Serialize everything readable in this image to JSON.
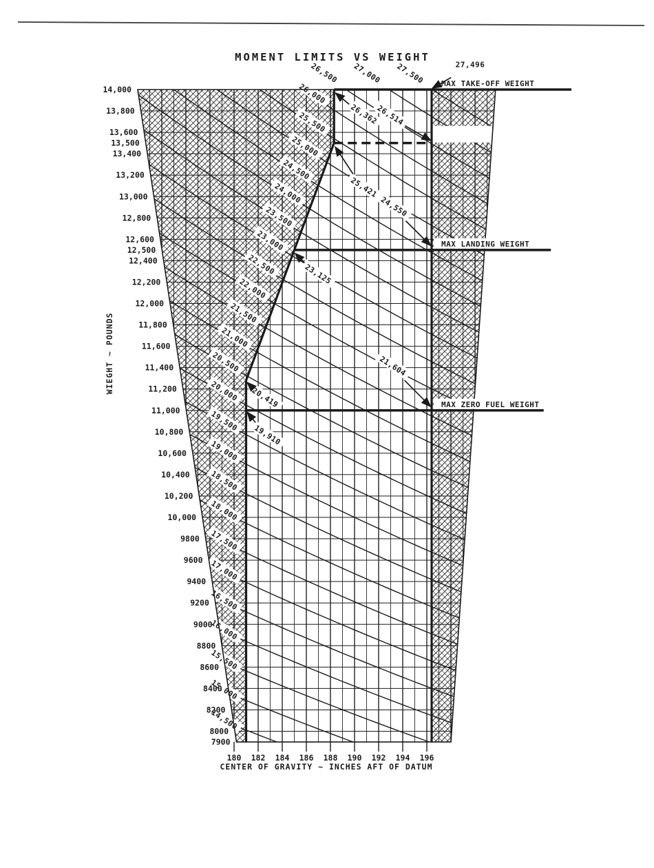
{
  "chart_data": {
    "type": "line",
    "subtype": "cg-envelope",
    "title": "MOMENT LIMITS VS WEIGHT",
    "xlabel": "CENTER OF GRAVITY ~ INCHES AFT OF DATUM",
    "ylabel": "WIEGHT ~ POUNDS",
    "x_ticks": [
      "180",
      "182",
      "184",
      "186",
      "188",
      "190",
      "192",
      "194",
      "196"
    ],
    "y_ticks": [
      "14,000",
      "13,800",
      "13,600",
      "13,500",
      "13,400",
      "13,200",
      "13,000",
      "12,800",
      "12,600",
      "12,500",
      "12,400",
      "12,200",
      "12,000",
      "11,800",
      "11,600",
      "11,400",
      "11,200",
      "11,000",
      "10,800",
      "10,600",
      "10,400",
      "10,200",
      "10,000",
      "9800",
      "9600",
      "9400",
      "9200",
      "9000",
      "8800",
      "8600",
      "8400",
      "8200",
      "8000",
      "7900"
    ],
    "x_range_in": [
      180,
      196
    ],
    "y_range_lb": [
      7900,
      14000
    ],
    "grid": {
      "x_step_in": 1,
      "y_step_lb": 200
    },
    "envelope": {
      "forward_limit": [
        {
          "arm": 188.3,
          "weight": 14000
        },
        {
          "arm": 188.3,
          "weight": 13500
        },
        {
          "arm": 185.0,
          "weight": 12500
        },
        {
          "arm": 181.0,
          "weight": 11281
        },
        {
          "arm": 181.0,
          "weight": 7900
        }
      ],
      "aft_limit_arm": 196.4,
      "top_weight": 14000,
      "bottom_weight": 7900
    },
    "moment_lines": {
      "units": "moment/100 pound-inches",
      "min": 14500,
      "max": 27500,
      "step": 500,
      "labels_left": [
        "26,000",
        "25,500",
        "25,000",
        "24,500",
        "24,000",
        "23,500",
        "23,000",
        "22,500",
        "22,000",
        "21,500",
        "21,000",
        "20,500",
        "20,000",
        "19,500",
        "19,000",
        "18,500",
        "18,000",
        "17,500",
        "17,000",
        "16,500",
        "16,000",
        "15,500",
        "15,000",
        "14,500"
      ],
      "labels_top": [
        "26,500",
        "27,000",
        "27,500"
      ]
    },
    "limit_lines": [
      {
        "label": "MAX TAKE-OFF WEIGHT",
        "weight": 14000,
        "style": "solid",
        "from_arm": 188.3,
        "to_arm": 208.0
      },
      {
        "label": "",
        "weight": 13500,
        "style": "dashed",
        "from_arm": 188.3,
        "to_arm": 196.4
      },
      {
        "label": "MAX LANDING WEIGHT",
        "weight": 12500,
        "style": "solid",
        "from_arm": 185.0,
        "to_arm": 206.3
      },
      {
        "label": "MAX ZERO FUEL WEIGHT",
        "weight": 11000,
        "style": "solid",
        "from_arm": 181.0,
        "to_arm": 205.7
      }
    ],
    "callouts": [
      {
        "text": "27,496",
        "anchor": {
          "arm": 199.6,
          "weight": 14215
        },
        "target": {
          "arm": 196.5,
          "weight": 14015
        },
        "rotated": false
      },
      {
        "text": "26,362",
        "anchor": {
          "arm": 190.7,
          "weight": 13755
        },
        "target": {
          "arm": 188.45,
          "weight": 13965
        },
        "rotated": true
      },
      {
        "text": "26,514",
        "anchor": {
          "arm": 192.9,
          "weight": 13745
        },
        "target": {
          "arm": 196.3,
          "weight": 13525
        },
        "rotated": true
      },
      {
        "text": "25,421",
        "anchor": {
          "arm": 190.7,
          "weight": 13070
        },
        "target": {
          "arm": 188.42,
          "weight": 13460
        },
        "rotated": true
      },
      {
        "text": "24,550",
        "anchor": {
          "arm": 193.2,
          "weight": 12890
        },
        "target": {
          "arm": 196.28,
          "weight": 12545
        },
        "rotated": true
      },
      {
        "text": "23,125",
        "anchor": {
          "arm": 186.9,
          "weight": 12260
        },
        "target": {
          "arm": 185.1,
          "weight": 12465
        },
        "rotated": true
      },
      {
        "text": "21,604",
        "anchor": {
          "arm": 193.1,
          "weight": 11400
        },
        "target": {
          "arm": 196.28,
          "weight": 11040
        },
        "rotated": true
      },
      {
        "text": "20,419",
        "anchor": {
          "arm": 182.5,
          "weight": 11105
        },
        "target": {
          "arm": 181.12,
          "weight": 11258
        },
        "rotated": true
      },
      {
        "text": "19,910",
        "anchor": {
          "arm": 182.7,
          "weight": 10755
        },
        "target": {
          "arm": 181.12,
          "weight": 10980
        },
        "rotated": true
      }
    ],
    "layout_hints": {
      "plot_block": {
        "top_left_arm": 172.0,
        "top_right_arm": 201.7,
        "bottom_right_arm": 198.0,
        "bottom_left_arm": 180.2
      },
      "right_notch": {
        "from_weight": 13660,
        "to_weight": 13505
      },
      "legend": "none",
      "hatched_regions": "outside CG envelope"
    },
    "colors": {
      "ink": "#1b1b1b",
      "background": "#ffffff"
    }
  }
}
